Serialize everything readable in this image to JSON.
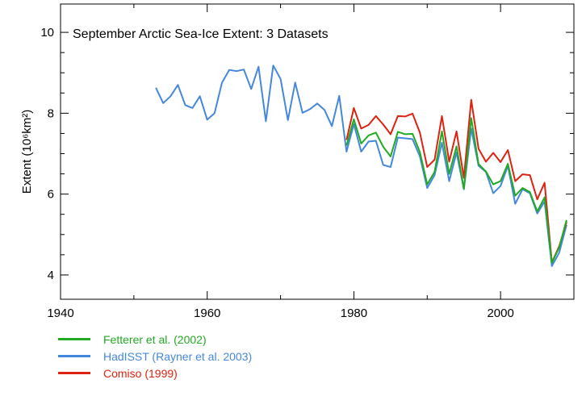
{
  "chart_data": {
    "type": "line",
    "title": "September Arctic Sea-Ice Extent: 3 Datasets",
    "ylabel": "Extent (10⁶km²)",
    "xlabel": "",
    "xlim": [
      1940,
      2010
    ],
    "ylim": [
      3.4,
      10.7
    ],
    "x_ticks": [
      1940,
      1960,
      1980,
      2000
    ],
    "y_ticks": [
      4,
      6,
      8,
      10
    ],
    "grid": false,
    "legend_position": "below",
    "series": [
      {
        "name": "Fetterer et al. (2002)",
        "color": "#22aa22",
        "x": [
          1979,
          1980,
          1981,
          1982,
          1983,
          1984,
          1985,
          1986,
          1987,
          1988,
          1989,
          1990,
          1991,
          1992,
          1993,
          1994,
          1995,
          1996,
          1997,
          1998,
          1999,
          2000,
          2001,
          2002,
          2003,
          2004,
          2005,
          2006,
          2007,
          2008,
          2009
        ],
        "y": [
          7.2,
          7.85,
          7.25,
          7.45,
          7.52,
          7.17,
          6.93,
          7.54,
          7.48,
          7.49,
          7.04,
          6.24,
          6.55,
          7.55,
          6.5,
          7.18,
          6.13,
          7.88,
          6.74,
          6.56,
          6.24,
          6.32,
          6.75,
          5.96,
          6.15,
          6.05,
          5.57,
          5.92,
          4.3,
          4.68,
          5.36
        ]
      },
      {
        "name": "HadISST (Rayner et al. 2003)",
        "color": "#4488dd",
        "x": [
          1953,
          1954,
          1955,
          1956,
          1957,
          1958,
          1959,
          1960,
          1961,
          1962,
          1963,
          1964,
          1965,
          1966,
          1967,
          1968,
          1969,
          1970,
          1971,
          1972,
          1973,
          1974,
          1975,
          1976,
          1977,
          1978,
          1979,
          1980,
          1981,
          1982,
          1983,
          1984,
          1985,
          1986,
          1987,
          1988,
          1989,
          1990,
          1991,
          1992,
          1993,
          1994,
          1995,
          1996,
          1997,
          1998,
          1999,
          2000,
          2001,
          2002,
          2003,
          2004,
          2005,
          2006,
          2007,
          2008,
          2009
        ],
        "y": [
          8.63,
          8.25,
          8.42,
          8.7,
          8.2,
          8.13,
          8.42,
          7.84,
          8.0,
          8.75,
          9.07,
          9.04,
          9.08,
          8.6,
          9.15,
          7.8,
          9.18,
          8.85,
          7.83,
          8.76,
          8.01,
          8.1,
          8.24,
          8.08,
          7.68,
          8.43,
          7.05,
          7.73,
          7.05,
          7.3,
          7.32,
          6.72,
          6.67,
          7.4,
          7.38,
          7.36,
          6.93,
          6.15,
          6.47,
          7.27,
          6.32,
          7.03,
          6.12,
          7.62,
          6.7,
          6.55,
          6.02,
          6.2,
          6.7,
          5.76,
          6.12,
          6.02,
          5.52,
          5.82,
          4.22,
          4.55,
          5.24
        ]
      },
      {
        "name": "Comiso (1999)",
        "color": "#dd2211",
        "x": [
          1979,
          1980,
          1981,
          1982,
          1983,
          1984,
          1985,
          1986,
          1987,
          1988,
          1989,
          1990,
          1991,
          1992,
          1993,
          1994,
          1995,
          1996,
          1997,
          1998,
          1999,
          2000,
          2001,
          2002,
          2003,
          2004,
          2005,
          2006,
          2007,
          2008,
          2009
        ],
        "y": [
          7.34,
          8.13,
          7.62,
          7.71,
          7.93,
          7.72,
          7.48,
          7.93,
          7.92,
          7.99,
          7.52,
          6.67,
          6.85,
          7.93,
          6.8,
          7.55,
          6.4,
          8.33,
          7.12,
          6.8,
          7.02,
          6.79,
          7.09,
          6.32,
          6.49,
          6.47,
          5.87,
          6.28,
          4.31,
          4.71,
          5.31
        ]
      }
    ]
  }
}
